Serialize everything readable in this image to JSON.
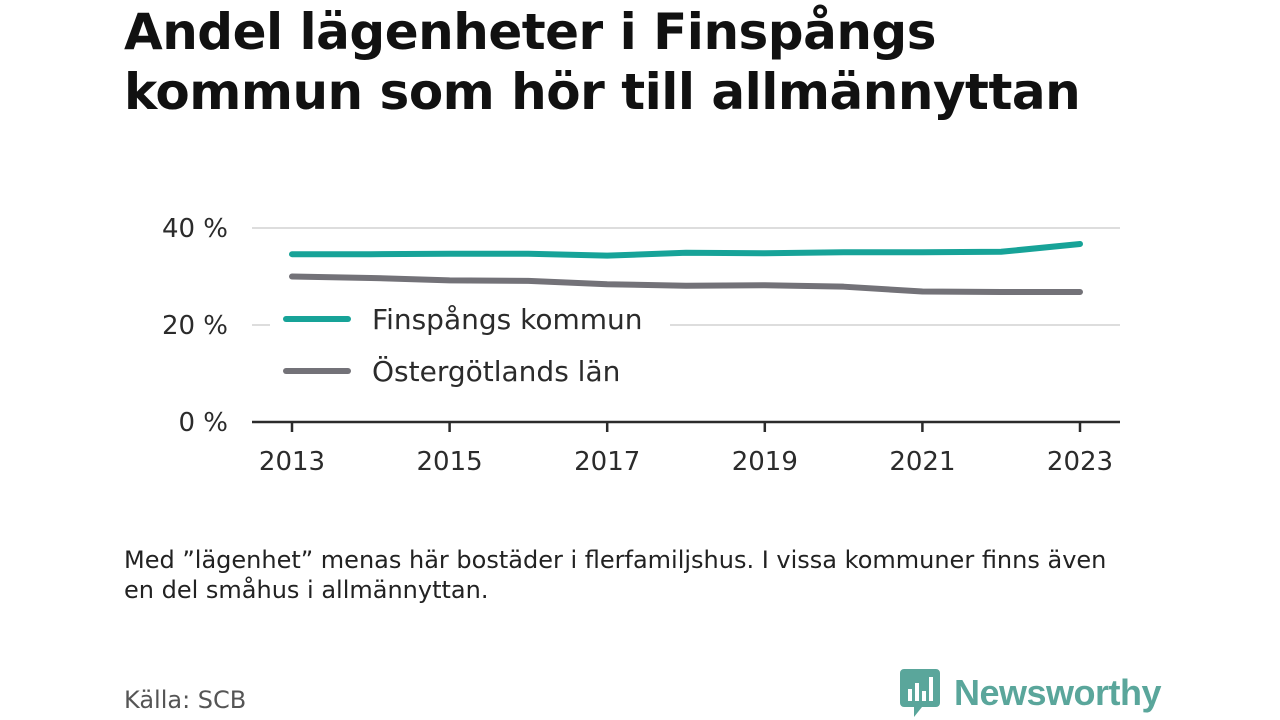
{
  "title": "Andel lägenheter i Finspångs kommun som hör till allmännyttan",
  "note": "Med ”lägenhet” menas här bostäder i flerfamiljshus. I vissa kommuner finns även en del småhus i allmännyttan.",
  "source": "Källa: SCB",
  "brand": {
    "name": "Newsworthy",
    "icon": "newsworthy-logo-icon",
    "color": "#5aa69b"
  },
  "chart_data": {
    "type": "line",
    "x": [
      2013,
      2014,
      2015,
      2016,
      2017,
      2018,
      2019,
      2020,
      2021,
      2022,
      2023
    ],
    "xticks": [
      2013,
      2015,
      2017,
      2019,
      2021,
      2023
    ],
    "xtick_labels": [
      "2013",
      "2015",
      "2017",
      "2019",
      "2021",
      "2023"
    ],
    "ylim": [
      0,
      40
    ],
    "yticks": [
      0,
      20,
      40
    ],
    "ytick_labels": [
      "0 %",
      "20 %",
      "40 %"
    ],
    "grid": true,
    "legend_position": "left-inside",
    "series": [
      {
        "name": "Finspångs kommun",
        "color": "#17a398",
        "values": [
          34.6,
          34.6,
          34.7,
          34.7,
          34.3,
          34.9,
          34.8,
          35.0,
          35.0,
          35.1,
          36.7
        ]
      },
      {
        "name": "Östergötlands län",
        "color": "#737278",
        "values": [
          30.0,
          29.7,
          29.2,
          29.1,
          28.4,
          28.1,
          28.2,
          27.9,
          26.9,
          26.8,
          26.8
        ]
      }
    ]
  }
}
